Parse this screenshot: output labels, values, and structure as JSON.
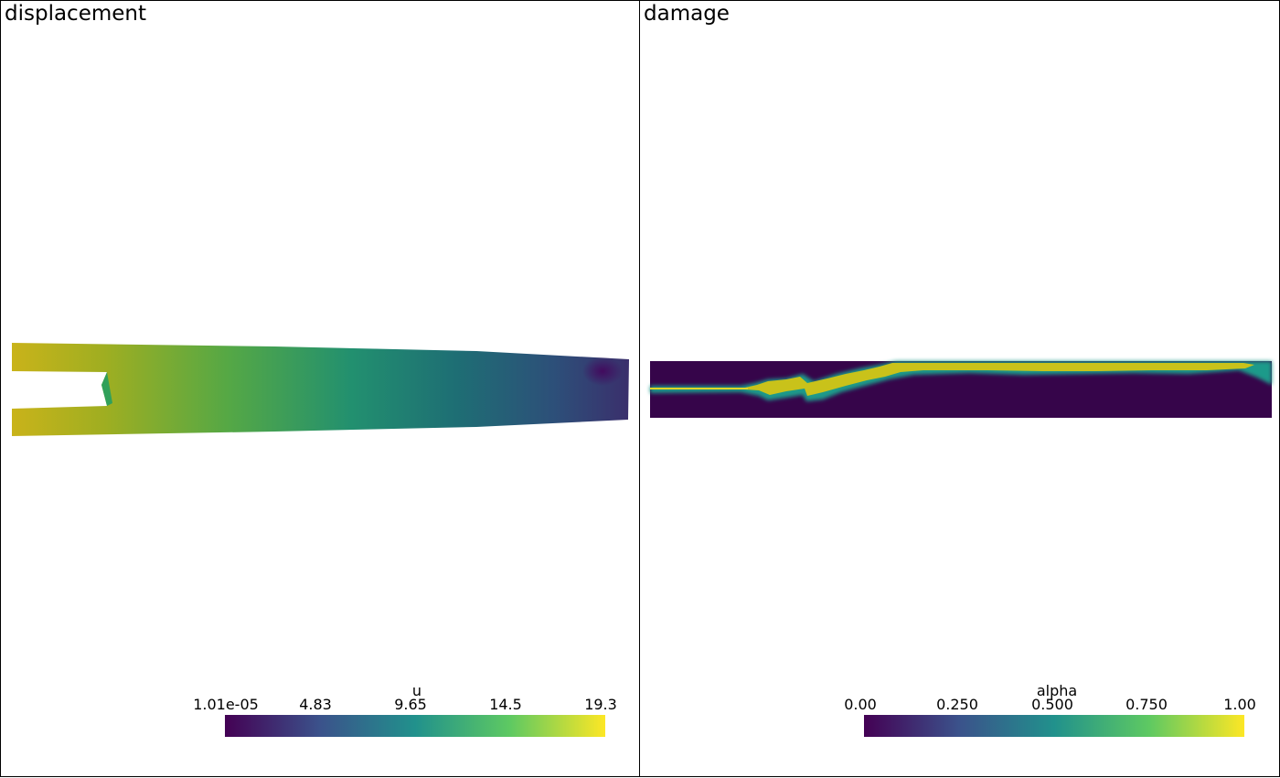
{
  "panels": {
    "left": {
      "title": "displacement",
      "colorbar": {
        "title": "u",
        "ticks": [
          "1.01e-05",
          "4.83",
          "9.65",
          "14.5",
          "19.3"
        ],
        "min": 1.01e-05,
        "max": 19.3
      }
    },
    "right": {
      "title": "damage",
      "colorbar": {
        "title": "alpha",
        "ticks": [
          "0.00",
          "0.250",
          "0.500",
          "0.750",
          "1.00"
        ],
        "min": 0.0,
        "max": 1.0
      }
    }
  },
  "colormap": {
    "name": "viridis",
    "stops": [
      "#440154",
      "#3b528b",
      "#21918c",
      "#5ec962",
      "#fde725"
    ]
  }
}
